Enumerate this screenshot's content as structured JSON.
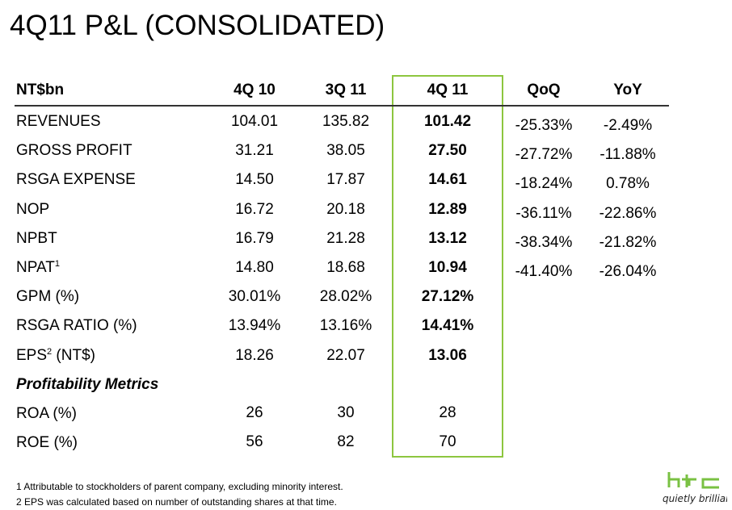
{
  "title": "4Q11 P&L (CONSOLIDATED)",
  "columns": [
    "NT$bn",
    "4Q 10",
    "3Q 11",
    "4Q 11",
    "QoQ",
    "YoY"
  ],
  "rows": [
    {
      "label": "REVENUES",
      "sup": "",
      "v": [
        "104.01",
        "135.82",
        "101.42"
      ],
      "qoq": "-25.33%",
      "yoy": "-2.49%"
    },
    {
      "label": "GROSS PROFIT",
      "sup": "",
      "v": [
        "31.21",
        "38.05",
        "27.50"
      ],
      "qoq": "-27.72%",
      "yoy": "-11.88%"
    },
    {
      "label": "RSGA EXPENSE",
      "sup": "",
      "v": [
        "14.50",
        "17.87",
        "14.61"
      ],
      "qoq": "-18.24%",
      "yoy": "0.78%"
    },
    {
      "label": "NOP",
      "sup": "",
      "v": [
        "16.72",
        "20.18",
        "12.89"
      ],
      "qoq": "-36.11%",
      "yoy": "-22.86%"
    },
    {
      "label": "NPBT",
      "sup": "",
      "v": [
        "16.79",
        "21.28",
        "13.12"
      ],
      "qoq": "-38.34%",
      "yoy": "-21.82%"
    },
    {
      "label": "NPAT",
      "sup": "1",
      "v": [
        "14.80",
        "18.68",
        "10.94"
      ],
      "qoq": "-41.40%",
      "yoy": "-26.04%"
    },
    {
      "label": "GPM (%)",
      "sup": "",
      "v": [
        "30.01%",
        "28.02%",
        "27.12%"
      ]
    },
    {
      "label": "RSGA RATIO (%)",
      "sup": "",
      "v": [
        "13.94%",
        "13.16%",
        "14.41%"
      ]
    },
    {
      "label": "EPS",
      "sup": "2",
      "label2": " (NT$)",
      "v": [
        "18.26",
        "22.07",
        "13.06"
      ]
    }
  ],
  "section": "Profitability Metrics",
  "metrics": [
    {
      "label": "ROA (%)",
      "v": [
        "26",
        "30",
        "28"
      ]
    },
    {
      "label": "ROE (%)",
      "v": [
        "56",
        "82",
        "70"
      ]
    }
  ],
  "footnotes": [
    "1  Attributable to stockholders of parent company, excluding minority interest.",
    "2  EPS was calculated based on number of outstanding shares at that time."
  ],
  "logo": {
    "brand": "htc",
    "tagline": "quietly brilliant",
    "color": "#7ac143"
  }
}
